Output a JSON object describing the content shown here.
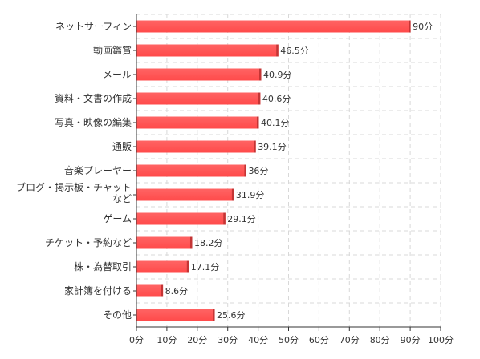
{
  "chart_data": {
    "type": "bar",
    "orientation": "horizontal",
    "categories": [
      "ネットサーフィン",
      "動画鑑賞",
      "メール",
      "資料・文書の作成",
      "写真・映像の編集",
      "通販",
      "音楽プレーヤー",
      "ブログ・掲示板・チャットなど",
      "ゲーム",
      "チケット・予約など",
      "株・為替取引",
      "家計簿を付ける",
      "その他"
    ],
    "category_lines": [
      [
        "ネットサーフィン"
      ],
      [
        "動画鑑賞"
      ],
      [
        "メール"
      ],
      [
        "資料・文書の作成"
      ],
      [
        "写真・映像の編集"
      ],
      [
        "通販"
      ],
      [
        "音楽プレーヤー"
      ],
      [
        "ブログ・掲示板・チャット",
        "など"
      ],
      [
        "ゲーム"
      ],
      [
        "チケット・予約など"
      ],
      [
        "株・為替取引"
      ],
      [
        "家計簿を付ける"
      ],
      [
        "その他"
      ]
    ],
    "series": [
      {
        "values": [
          90,
          46.5,
          40.9,
          40.6,
          40.1,
          39.1,
          36,
          31.9,
          29.1,
          18.2,
          17.1,
          8.6,
          25.6
        ],
        "color": "#ff4a4a"
      }
    ],
    "value_suffix": "分",
    "xlim": [
      0,
      100
    ],
    "xticks": [
      0,
      10,
      20,
      30,
      40,
      50,
      60,
      70,
      80,
      90,
      100
    ],
    "xtick_labels": [
      "0分",
      "10分",
      "20分",
      "30分",
      "40分",
      "50分",
      "60分",
      "70分",
      "80分",
      "90分",
      "100分"
    ],
    "grid": true,
    "legend": "none",
    "title": "",
    "xlabel": "",
    "ylabel": "",
    "colors": {
      "bar": "#ff4a4a",
      "bar_edge": "#c43535",
      "grid": "#d8d8d8",
      "axis": "#333333"
    }
  }
}
